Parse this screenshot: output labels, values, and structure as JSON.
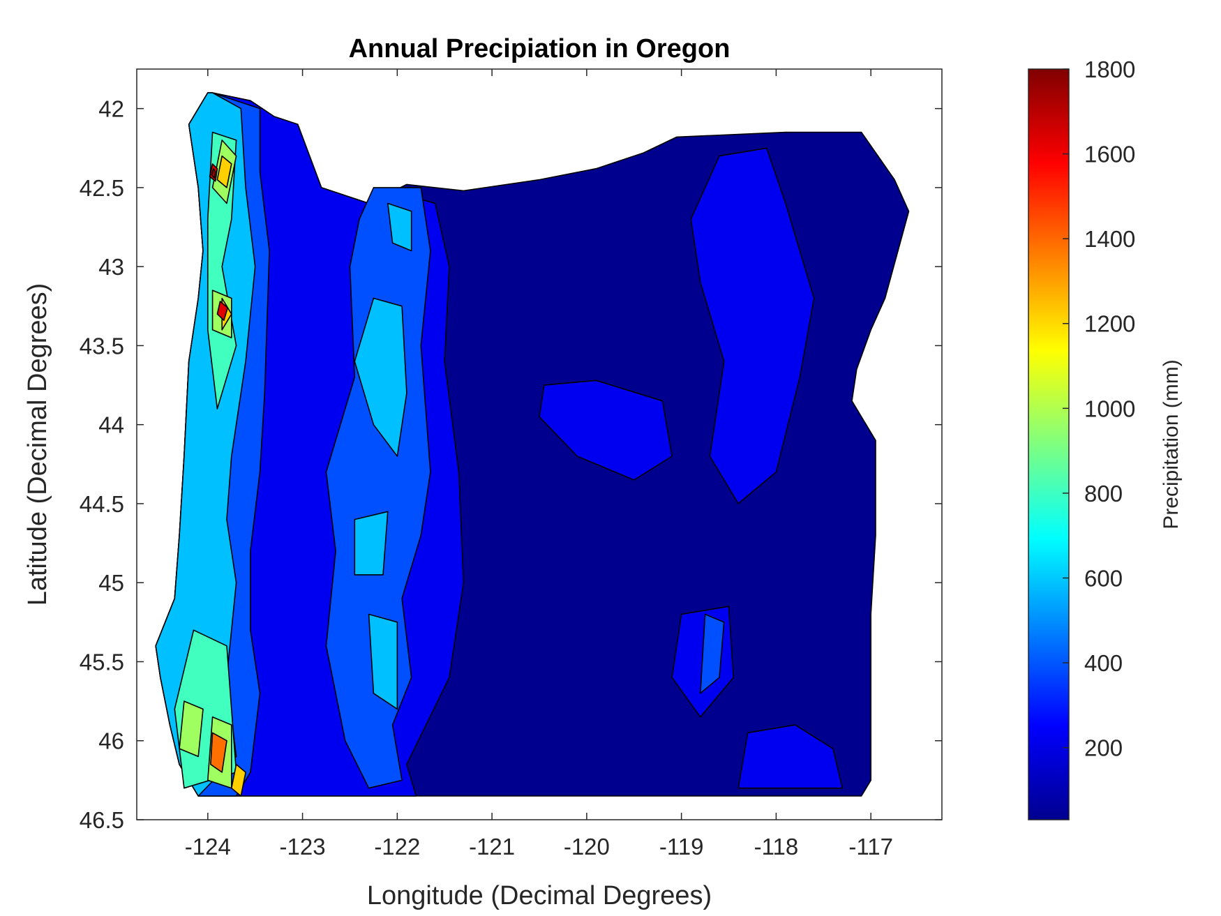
{
  "chart_data": {
    "type": "heatmap",
    "subtype": "filled-contour",
    "title": "Annual Precipiation in Oregon",
    "xlabel": "Longitude (Decimal Degrees)",
    "ylabel": "Latitude (Decimal Degrees)",
    "colorbar_label": "Precipitation (mm)",
    "xlim": [
      -124.75,
      -116.25
    ],
    "ylim": [
      41.75,
      46.5
    ],
    "y_reversed": true,
    "x_ticks": [
      -124,
      -123,
      -122,
      -121,
      -120,
      -119,
      -118,
      -117
    ],
    "x_tick_labels": [
      "-124",
      "-123",
      "-122",
      "-121",
      "-120",
      "-119",
      "-118",
      "-117"
    ],
    "y_ticks": [
      42,
      42.5,
      43,
      43.5,
      44,
      44.5,
      45,
      45.5,
      46,
      46.5
    ],
    "y_tick_labels": [
      "42",
      "42.5",
      "43",
      "43.5",
      "44",
      "44.5",
      "45",
      "45.5",
      "46",
      "46.5"
    ],
    "colorbar_range": [
      30,
      1800
    ],
    "colorbar_ticks": [
      200,
      400,
      600,
      800,
      1000,
      1200,
      1400,
      1600,
      1800
    ],
    "colorbar_tick_labels": [
      "200",
      "400",
      "600",
      "800",
      "1000",
      "1200",
      "1400",
      "1600",
      "1800"
    ],
    "colormap": "jet",
    "grid": false,
    "regions": [
      {
        "level": 150,
        "color": "#00008f",
        "polygon": [
          [
            -123.95,
            41.9
          ],
          [
            -123.55,
            41.95
          ],
          [
            -123.3,
            42.05
          ],
          [
            -123.05,
            42.1
          ],
          [
            -122.8,
            42.5
          ],
          [
            -122.3,
            42.6
          ],
          [
            -121.9,
            42.48
          ],
          [
            -121.3,
            42.52
          ],
          [
            -120.5,
            42.45
          ],
          [
            -119.9,
            42.38
          ],
          [
            -119.4,
            42.28
          ],
          [
            -119.05,
            42.18
          ],
          [
            -117.9,
            42.15
          ],
          [
            -117.1,
            42.15
          ],
          [
            -116.75,
            42.45
          ],
          [
            -116.6,
            42.65
          ],
          [
            -116.85,
            43.2
          ],
          [
            -117.0,
            43.4
          ],
          [
            -117.15,
            43.65
          ],
          [
            -117.2,
            43.85
          ],
          [
            -116.95,
            44.1
          ],
          [
            -116.95,
            44.7
          ],
          [
            -117.0,
            45.2
          ],
          [
            -117.0,
            46.25
          ],
          [
            -117.1,
            46.35
          ],
          [
            -123.7,
            46.35
          ],
          [
            -124.1,
            46.35
          ],
          [
            -124.3,
            46.15
          ],
          [
            -124.4,
            45.9
          ],
          [
            -124.5,
            45.6
          ],
          [
            -124.55,
            45.4
          ],
          [
            -124.35,
            45.1
          ],
          [
            -124.3,
            44.7
          ],
          [
            -124.25,
            44.2
          ],
          [
            -124.2,
            43.6
          ],
          [
            -124.1,
            43.2
          ],
          [
            -124.05,
            42.9
          ],
          [
            -124.1,
            42.5
          ],
          [
            -124.2,
            42.1
          ],
          [
            -124.0,
            41.9
          ]
        ]
      },
      {
        "level": 280,
        "color": "#0000f0",
        "polygon": [
          [
            -123.95,
            41.9
          ],
          [
            -123.55,
            41.95
          ],
          [
            -123.3,
            42.05
          ],
          [
            -123.05,
            42.1
          ],
          [
            -122.8,
            42.5
          ],
          [
            -122.3,
            42.6
          ],
          [
            -121.9,
            42.55
          ],
          [
            -121.6,
            42.6
          ],
          [
            -121.45,
            43.0
          ],
          [
            -121.5,
            43.6
          ],
          [
            -121.35,
            44.3
          ],
          [
            -121.3,
            45.0
          ],
          [
            -121.45,
            45.6
          ],
          [
            -121.9,
            46.15
          ],
          [
            -121.8,
            46.35
          ],
          [
            -123.7,
            46.35
          ],
          [
            -124.1,
            46.35
          ],
          [
            -124.3,
            46.15
          ],
          [
            -124.4,
            45.9
          ],
          [
            -124.5,
            45.6
          ],
          [
            -124.55,
            45.4
          ],
          [
            -124.35,
            45.1
          ],
          [
            -124.3,
            44.7
          ],
          [
            -124.25,
            44.2
          ],
          [
            -124.2,
            43.6
          ],
          [
            -124.1,
            43.2
          ],
          [
            -124.05,
            42.9
          ],
          [
            -124.1,
            42.5
          ],
          [
            -124.2,
            42.1
          ],
          [
            -124.0,
            41.9
          ]
        ]
      },
      {
        "level": 280,
        "color": "#0000f0",
        "polygon": [
          [
            -118.6,
            42.3
          ],
          [
            -118.1,
            42.25
          ],
          [
            -117.9,
            42.6
          ],
          [
            -117.6,
            43.2
          ],
          [
            -117.75,
            43.7
          ],
          [
            -118.0,
            44.3
          ],
          [
            -118.4,
            44.5
          ],
          [
            -118.7,
            44.2
          ],
          [
            -118.55,
            43.6
          ],
          [
            -118.8,
            43.1
          ],
          [
            -118.9,
            42.7
          ]
        ]
      },
      {
        "level": 280,
        "color": "#0000f0",
        "polygon": [
          [
            -120.45,
            43.75
          ],
          [
            -119.9,
            43.72
          ],
          [
            -119.2,
            43.85
          ],
          [
            -119.1,
            44.2
          ],
          [
            -119.5,
            44.35
          ],
          [
            -120.1,
            44.2
          ],
          [
            -120.5,
            43.95
          ]
        ]
      },
      {
        "level": 280,
        "color": "#0000f0",
        "polygon": [
          [
            -119.0,
            45.2
          ],
          [
            -118.5,
            45.15
          ],
          [
            -118.45,
            45.6
          ],
          [
            -118.8,
            45.85
          ],
          [
            -119.1,
            45.6
          ]
        ]
      },
      {
        "level": 280,
        "color": "#0000f0",
        "polygon": [
          [
            -118.3,
            45.95
          ],
          [
            -117.8,
            45.9
          ],
          [
            -117.4,
            46.05
          ],
          [
            -117.3,
            46.3
          ],
          [
            -118.4,
            46.3
          ]
        ]
      },
      {
        "level": 380,
        "color": "#0050ff",
        "polygon": [
          [
            -123.95,
            41.9
          ],
          [
            -123.45,
            42.0
          ],
          [
            -123.45,
            42.4
          ],
          [
            -123.35,
            42.9
          ],
          [
            -123.4,
            43.8
          ],
          [
            -123.45,
            44.3
          ],
          [
            -123.55,
            44.8
          ],
          [
            -123.55,
            45.3
          ],
          [
            -123.45,
            45.7
          ],
          [
            -123.55,
            46.2
          ],
          [
            -123.7,
            46.35
          ],
          [
            -124.1,
            46.35
          ],
          [
            -124.3,
            46.15
          ],
          [
            -124.4,
            45.9
          ],
          [
            -124.5,
            45.6
          ],
          [
            -124.55,
            45.4
          ],
          [
            -124.35,
            45.1
          ],
          [
            -124.3,
            44.7
          ],
          [
            -124.25,
            44.2
          ],
          [
            -124.2,
            43.6
          ],
          [
            -124.1,
            43.2
          ],
          [
            -124.05,
            42.9
          ],
          [
            -124.1,
            42.5
          ],
          [
            -124.2,
            42.1
          ],
          [
            -124.0,
            41.9
          ]
        ]
      },
      {
        "level": 380,
        "color": "#0050ff",
        "polygon": [
          [
            -122.25,
            42.5
          ],
          [
            -121.75,
            42.5
          ],
          [
            -121.65,
            42.9
          ],
          [
            -121.75,
            43.5
          ],
          [
            -121.65,
            44.3
          ],
          [
            -121.75,
            44.7
          ],
          [
            -121.95,
            45.1
          ],
          [
            -121.85,
            45.6
          ],
          [
            -122.05,
            45.9
          ],
          [
            -121.95,
            46.25
          ],
          [
            -122.3,
            46.3
          ],
          [
            -122.55,
            46.0
          ],
          [
            -122.75,
            45.4
          ],
          [
            -122.65,
            44.8
          ],
          [
            -122.75,
            44.3
          ],
          [
            -122.45,
            43.7
          ],
          [
            -122.5,
            43.0
          ],
          [
            -122.4,
            42.7
          ]
        ]
      },
      {
        "level": 380,
        "color": "#0050ff",
        "polygon": [
          [
            -118.75,
            45.2
          ],
          [
            -118.55,
            45.25
          ],
          [
            -118.6,
            45.6
          ],
          [
            -118.8,
            45.7
          ]
        ]
      },
      {
        "level": 560,
        "color": "#00c0ff",
        "polygon": [
          [
            -123.95,
            41.9
          ],
          [
            -123.65,
            42.0
          ],
          [
            -123.6,
            42.5
          ],
          [
            -123.5,
            43.0
          ],
          [
            -123.6,
            43.6
          ],
          [
            -123.75,
            44.2
          ],
          [
            -123.8,
            44.6
          ],
          [
            -123.7,
            45.0
          ],
          [
            -123.8,
            45.6
          ],
          [
            -123.7,
            46.1
          ],
          [
            -124.1,
            46.35
          ],
          [
            -124.3,
            46.15
          ],
          [
            -124.4,
            45.9
          ],
          [
            -124.5,
            45.6
          ],
          [
            -124.55,
            45.4
          ],
          [
            -124.35,
            45.1
          ],
          [
            -124.3,
            44.7
          ],
          [
            -124.25,
            44.2
          ],
          [
            -124.2,
            43.6
          ],
          [
            -124.1,
            43.2
          ],
          [
            -124.05,
            42.9
          ],
          [
            -124.1,
            42.5
          ],
          [
            -124.2,
            42.1
          ],
          [
            -124.0,
            41.9
          ]
        ]
      },
      {
        "level": 560,
        "color": "#00c0ff",
        "polygon": [
          [
            -122.25,
            43.2
          ],
          [
            -121.95,
            43.25
          ],
          [
            -121.9,
            43.8
          ],
          [
            -122.0,
            44.2
          ],
          [
            -122.25,
            44.0
          ],
          [
            -122.45,
            43.6
          ]
        ]
      },
      {
        "level": 560,
        "color": "#00c0ff",
        "polygon": [
          [
            -122.1,
            42.6
          ],
          [
            -121.85,
            42.65
          ],
          [
            -121.85,
            42.9
          ],
          [
            -122.05,
            42.85
          ]
        ]
      },
      {
        "level": 560,
        "color": "#00c0ff",
        "polygon": [
          [
            -122.45,
            44.6
          ],
          [
            -122.1,
            44.55
          ],
          [
            -122.15,
            44.95
          ],
          [
            -122.45,
            44.95
          ]
        ]
      },
      {
        "level": 560,
        "color": "#00c0ff",
        "polygon": [
          [
            -122.3,
            45.2
          ],
          [
            -122.0,
            45.25
          ],
          [
            -122.0,
            45.8
          ],
          [
            -122.25,
            45.7
          ]
        ]
      },
      {
        "level": 800,
        "color": "#40ffbf",
        "polygon": [
          [
            -123.95,
            42.15
          ],
          [
            -123.7,
            42.2
          ],
          [
            -123.75,
            42.7
          ],
          [
            -123.85,
            43.0
          ],
          [
            -123.7,
            43.5
          ],
          [
            -123.9,
            43.9
          ],
          [
            -124.0,
            43.4
          ],
          [
            -124.0,
            42.7
          ]
        ]
      },
      {
        "level": 800,
        "color": "#40ffbf",
        "polygon": [
          [
            -124.15,
            45.3
          ],
          [
            -123.8,
            45.4
          ],
          [
            -123.75,
            45.8
          ],
          [
            -123.7,
            46.2
          ],
          [
            -124.25,
            46.3
          ],
          [
            -124.35,
            45.8
          ]
        ]
      },
      {
        "level": 1000,
        "color": "#a0ff60",
        "polygon": [
          [
            -123.85,
            42.2
          ],
          [
            -123.7,
            42.3
          ],
          [
            -123.8,
            42.6
          ],
          [
            -123.95,
            42.5
          ]
        ]
      },
      {
        "level": 1000,
        "color": "#a0ff60",
        "polygon": [
          [
            -123.95,
            43.15
          ],
          [
            -123.75,
            43.2
          ],
          [
            -123.75,
            43.45
          ],
          [
            -123.95,
            43.4
          ]
        ]
      },
      {
        "level": 1000,
        "color": "#a0ff60",
        "polygon": [
          [
            -124.25,
            45.75
          ],
          [
            -124.05,
            45.8
          ],
          [
            -124.1,
            46.1
          ],
          [
            -124.3,
            46.05
          ]
        ]
      },
      {
        "level": 1000,
        "color": "#a0ff60",
        "polygon": [
          [
            -123.95,
            45.85
          ],
          [
            -123.75,
            45.9
          ],
          [
            -123.75,
            46.3
          ],
          [
            -124.0,
            46.25
          ]
        ]
      },
      {
        "level": 1150,
        "color": "#ffd000",
        "polygon": [
          [
            -123.85,
            42.3
          ],
          [
            -123.75,
            42.35
          ],
          [
            -123.8,
            42.5
          ],
          [
            -123.9,
            42.45
          ]
        ]
      },
      {
        "level": 1150,
        "color": "#ffd000",
        "polygon": [
          [
            -123.85,
            43.2
          ],
          [
            -123.75,
            43.3
          ],
          [
            -123.85,
            43.4
          ]
        ]
      },
      {
        "level": 1150,
        "color": "#ffd000",
        "polygon": [
          [
            -123.7,
            46.15
          ],
          [
            -123.6,
            46.2
          ],
          [
            -123.65,
            46.35
          ],
          [
            -123.75,
            46.3
          ]
        ]
      },
      {
        "level": 1350,
        "color": "#ff7000",
        "polygon": [
          [
            -123.95,
            45.95
          ],
          [
            -123.8,
            46.0
          ],
          [
            -123.85,
            46.2
          ],
          [
            -123.97,
            46.15
          ]
        ]
      },
      {
        "level": 1550,
        "color": "#e00000",
        "polygon": [
          [
            -123.95,
            42.35
          ],
          [
            -123.9,
            42.38
          ],
          [
            -123.92,
            42.46
          ],
          [
            -123.98,
            42.43
          ]
        ]
      },
      {
        "level": 1550,
        "color": "#e00000",
        "polygon": [
          [
            -123.87,
            43.22
          ],
          [
            -123.79,
            43.26
          ],
          [
            -123.83,
            43.34
          ],
          [
            -123.9,
            43.3
          ]
        ]
      },
      {
        "level": 1700,
        "color": "#a00000",
        "polygon": [
          [
            -123.94,
            42.38
          ],
          [
            -123.92,
            42.4
          ],
          [
            -123.93,
            42.44
          ],
          [
            -123.96,
            42.42
          ]
        ]
      }
    ]
  }
}
